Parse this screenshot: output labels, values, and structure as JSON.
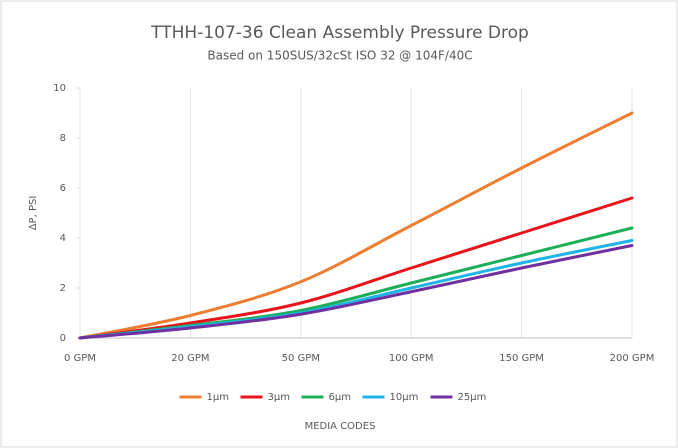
{
  "chart_data": {
    "type": "line",
    "title": "TTHH-107-36 Clean Assembly Pressure Drop",
    "subtitle": "Based on 150SUS/32cSt ISO 32 @ 104F/40C",
    "y_label": "ΔP, PSI",
    "x_label": "MEDIA CODES",
    "categories": [
      "0 GPM",
      "20 GPM",
      "50 GPM",
      "100 GPM",
      "150 GPM",
      "200 GPM"
    ],
    "series": [
      {
        "name": "1µm",
        "color": "#ed7d31",
        "values": [
          0,
          0.9,
          2.25,
          4.5,
          6.8,
          9.0
        ]
      },
      {
        "name": "3µm",
        "color": "#e8141b",
        "values": [
          0,
          0.6,
          1.4,
          2.8,
          4.2,
          5.6
        ]
      },
      {
        "name": "6µm",
        "color": "#1cae5a",
        "values": [
          0,
          0.5,
          1.1,
          2.2,
          3.3,
          4.4
        ]
      },
      {
        "name": "10µm",
        "color": "#1eb4ea",
        "values": [
          0,
          0.45,
          1.0,
          2.0,
          3.0,
          3.9
        ]
      },
      {
        "name": "25µm",
        "color": "#7030a0",
        "values": [
          0,
          0.4,
          0.95,
          1.85,
          2.8,
          3.7
        ]
      }
    ],
    "ylim": [
      0,
      10
    ],
    "yticks": [
      0,
      2,
      4,
      6,
      8,
      10
    ],
    "grid": "x",
    "legend": "bottom"
  }
}
